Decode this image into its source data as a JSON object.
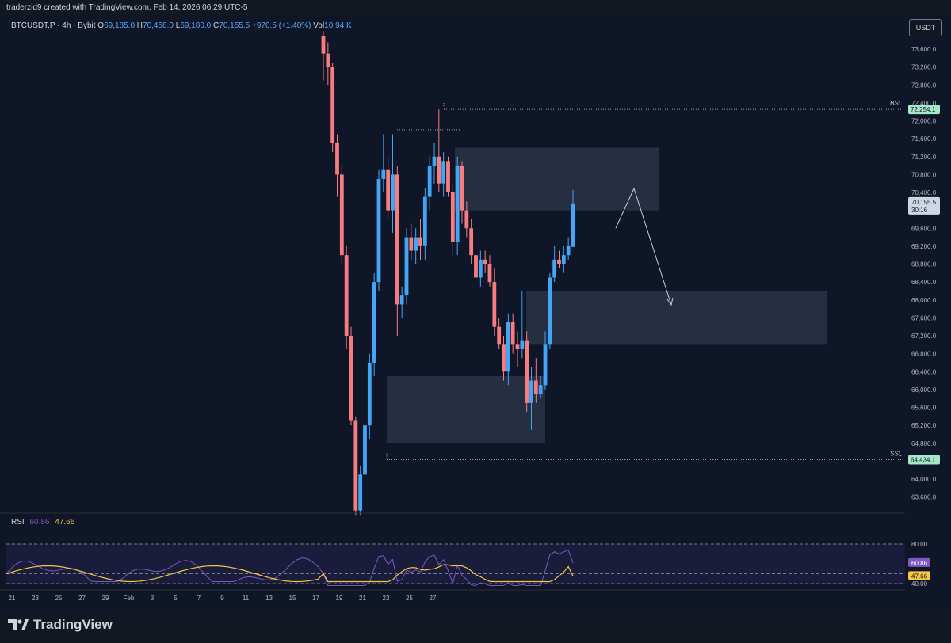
{
  "header": {
    "created_by": "traderzid9 created with TradingView.com, Feb 14, 2026 06:29 UTC-5"
  },
  "legend": {
    "symbol": "BTCUSDT.P · 4h · Bybit",
    "open_label": "O",
    "open": "69,185.0",
    "high_label": "H",
    "high": "70,458.0",
    "low_label": "L",
    "low": "69,180.0",
    "close_label": "C",
    "close": "70,155.5",
    "change": "+970.5 (+1.40%)",
    "vol_label": "Vol",
    "vol": "10.94 K"
  },
  "currency_button": "USDT",
  "price_axis_ticks": [
    "73,600.0",
    "73,200.0",
    "72,800.0",
    "72,400.0",
    "72,000.0",
    "71,600.0",
    "71,200.0",
    "70,800.0",
    "70,400.0",
    "69,600.0",
    "69,200.0",
    "68,800.0",
    "68,400.0",
    "68,000.0",
    "67,600.0",
    "67,200.0",
    "66,800.0",
    "66,400.0",
    "66,000.0",
    "65,600.0",
    "65,200.0",
    "64,800.0",
    "64,000.0",
    "63,600.0"
  ],
  "bsl": {
    "label": "BSL",
    "price": "72,254.1"
  },
  "ssl": {
    "label": "SSL",
    "price": "64,434.1"
  },
  "last_price": {
    "price": "70,155.5",
    "countdown": "30:16"
  },
  "rsi": {
    "name": "RSI",
    "value": "60.86",
    "ma": "47.66",
    "axis_ticks": [
      "80.00",
      "40.00"
    ]
  },
  "time_axis_ticks": [
    "21",
    "23",
    "25",
    "27",
    "29",
    "Feb",
    "3",
    "5",
    "7",
    "9",
    "11",
    "13",
    "15",
    "17",
    "19",
    "21",
    "23",
    "25",
    "27"
  ],
  "brand": "TradingView",
  "colors": {
    "up": "#42a5f5",
    "down": "#f77c80",
    "rsi": "#7e57c2",
    "rsi_ma": "#f6c744",
    "box": "#2a3447"
  },
  "chart_data": {
    "type": "candlestick",
    "symbol": "BTCUSDT.P",
    "timeframe": "4h",
    "ylim": [
      63200,
      74000
    ],
    "x_ticks": [
      "21",
      "23",
      "25",
      "27",
      "29",
      "Feb",
      "3",
      "5",
      "7",
      "9",
      "11",
      "13",
      "15",
      "17",
      "19",
      "21",
      "23",
      "25",
      "27"
    ],
    "candles": [
      {
        "o": 73900,
        "h": 74000,
        "l": 72900,
        "c": 73500
      },
      {
        "o": 73500,
        "h": 73750,
        "l": 72800,
        "c": 73200
      },
      {
        "o": 73200,
        "h": 73300,
        "l": 71300,
        "c": 71500
      },
      {
        "o": 71500,
        "h": 71700,
        "l": 70300,
        "c": 70800
      },
      {
        "o": 70800,
        "h": 71000,
        "l": 68800,
        "c": 69000
      },
      {
        "o": 69000,
        "h": 69200,
        "l": 66900,
        "c": 67200
      },
      {
        "o": 67200,
        "h": 67400,
        "l": 65200,
        "c": 65300
      },
      {
        "o": 65300,
        "h": 65400,
        "l": 63200,
        "c": 63300
      },
      {
        "o": 63300,
        "h": 64300,
        "l": 63200,
        "c": 64100
      },
      {
        "o": 64100,
        "h": 65400,
        "l": 63800,
        "c": 65200
      },
      {
        "o": 65200,
        "h": 66800,
        "l": 64900,
        "c": 66600
      },
      {
        "o": 66600,
        "h": 68600,
        "l": 66300,
        "c": 68400
      },
      {
        "o": 68400,
        "h": 70900,
        "l": 68200,
        "c": 70700
      },
      {
        "o": 70700,
        "h": 71700,
        "l": 70400,
        "c": 70900
      },
      {
        "o": 70900,
        "h": 71200,
        "l": 69800,
        "c": 70000
      },
      {
        "o": 70000,
        "h": 71700,
        "l": 69500,
        "c": 70800
      },
      {
        "o": 70800,
        "h": 71000,
        "l": 67200,
        "c": 67900
      },
      {
        "o": 67900,
        "h": 68300,
        "l": 67600,
        "c": 68100
      },
      {
        "o": 68100,
        "h": 69600,
        "l": 67900,
        "c": 69400
      },
      {
        "o": 69400,
        "h": 69700,
        "l": 68900,
        "c": 69100
      },
      {
        "o": 69100,
        "h": 69600,
        "l": 68800,
        "c": 69400
      },
      {
        "o": 69400,
        "h": 69800,
        "l": 68900,
        "c": 69200
      },
      {
        "o": 69200,
        "h": 70500,
        "l": 68900,
        "c": 70300
      },
      {
        "o": 70300,
        "h": 71200,
        "l": 70000,
        "c": 71000
      },
      {
        "o": 71000,
        "h": 71500,
        "l": 70600,
        "c": 71200
      },
      {
        "o": 71200,
        "h": 72254,
        "l": 70400,
        "c": 70600
      },
      {
        "o": 70600,
        "h": 71300,
        "l": 70300,
        "c": 71100
      },
      {
        "o": 71100,
        "h": 71200,
        "l": 70300,
        "c": 70400
      },
      {
        "o": 70400,
        "h": 70600,
        "l": 69000,
        "c": 69300
      },
      {
        "o": 69300,
        "h": 71200,
        "l": 69000,
        "c": 71000
      },
      {
        "o": 71000,
        "h": 71100,
        "l": 69700,
        "c": 70000
      },
      {
        "o": 70000,
        "h": 70200,
        "l": 69400,
        "c": 69600
      },
      {
        "o": 69600,
        "h": 69800,
        "l": 68800,
        "c": 69000
      },
      {
        "o": 69000,
        "h": 69300,
        "l": 68300,
        "c": 68500
      },
      {
        "o": 68500,
        "h": 69100,
        "l": 68300,
        "c": 68900
      },
      {
        "o": 68900,
        "h": 69100,
        "l": 68600,
        "c": 68800
      },
      {
        "o": 68800,
        "h": 69000,
        "l": 68300,
        "c": 68400
      },
      {
        "o": 68400,
        "h": 68700,
        "l": 67200,
        "c": 67400
      },
      {
        "o": 67400,
        "h": 67600,
        "l": 66900,
        "c": 67000
      },
      {
        "o": 67000,
        "h": 67200,
        "l": 66200,
        "c": 66400
      },
      {
        "o": 66400,
        "h": 67700,
        "l": 66100,
        "c": 67500
      },
      {
        "o": 67500,
        "h": 67700,
        "l": 66800,
        "c": 67000
      },
      {
        "o": 67000,
        "h": 67300,
        "l": 66500,
        "c": 66900
      },
      {
        "o": 66900,
        "h": 68200,
        "l": 66700,
        "c": 67100
      },
      {
        "o": 67100,
        "h": 67300,
        "l": 65500,
        "c": 65700
      },
      {
        "o": 65700,
        "h": 66500,
        "l": 65100,
        "c": 66200
      },
      {
        "o": 66200,
        "h": 66700,
        "l": 65700,
        "c": 65900
      },
      {
        "o": 65900,
        "h": 66300,
        "l": 65800,
        "c": 66100
      },
      {
        "o": 66100,
        "h": 67300,
        "l": 66000,
        "c": 67000
      },
      {
        "o": 67000,
        "h": 68600,
        "l": 66900,
        "c": 68500
      },
      {
        "o": 68500,
        "h": 69200,
        "l": 68400,
        "c": 68900
      },
      {
        "o": 68900,
        "h": 69100,
        "l": 68700,
        "c": 68800
      },
      {
        "o": 68800,
        "h": 69200,
        "l": 68600,
        "c": 69000
      },
      {
        "o": 69000,
        "h": 69400,
        "l": 68900,
        "c": 69200
      },
      {
        "o": 69185,
        "h": 70458,
        "l": 69180,
        "c": 70155.5
      }
    ],
    "zones": [
      {
        "from": "9",
        "to": "17",
        "top": 71400,
        "bottom": 70000
      },
      {
        "from": "13",
        "to": "25",
        "top": 68200,
        "bottom": 67000
      },
      {
        "from": "5",
        "to": "13",
        "top": 66300,
        "bottom": 64800
      }
    ],
    "levels": [
      {
        "label": "BSL",
        "price": 72254.1
      },
      {
        "label": "SSL",
        "price": 64434.1
      }
    ],
    "rsi": {
      "value": 60.86,
      "ma": 47.66,
      "ylim": [
        20,
        90
      ],
      "bands": [
        80,
        50,
        40
      ]
    }
  }
}
